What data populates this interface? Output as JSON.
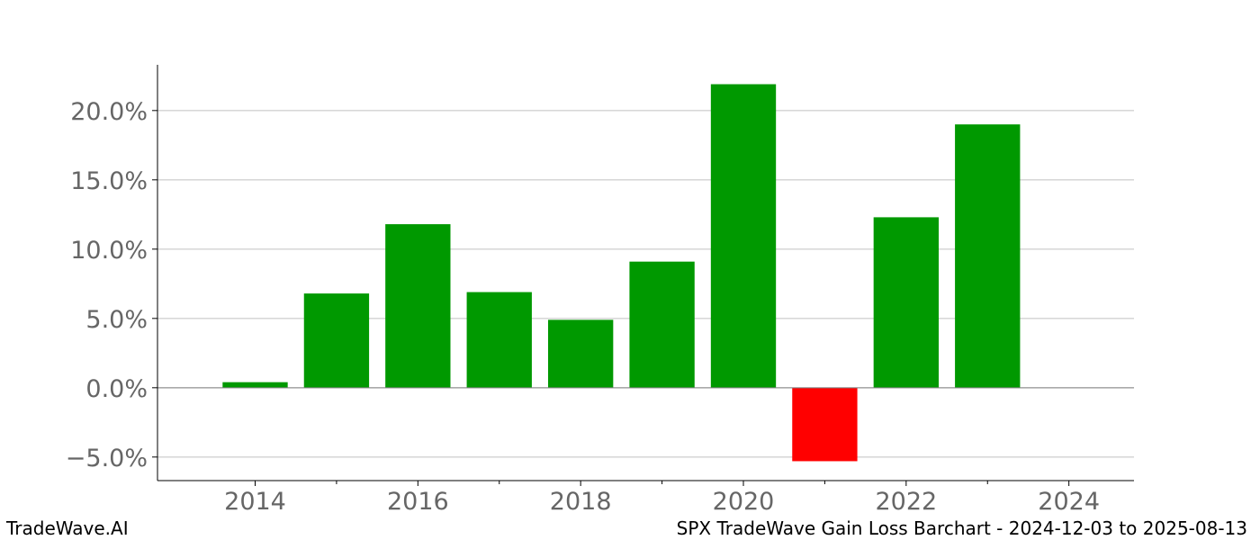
{
  "chart_data": {
    "type": "bar",
    "title": "SPX TradeWave Gain Loss Barchart - 2024-12-03 to 2025-08-13",
    "xlabel": "",
    "ylabel": "",
    "x": [
      2014,
      2015,
      2016,
      2017,
      2018,
      2019,
      2020,
      2021,
      2022,
      2023
    ],
    "values": [
      0.4,
      6.8,
      11.8,
      6.9,
      4.9,
      9.1,
      21.9,
      -5.3,
      12.3,
      19.0
    ],
    "xlim": [
      2012.8,
      2024.8
    ],
    "ylim": [
      -6.7,
      23.3
    ],
    "xticks": [
      2014,
      2016,
      2018,
      2020,
      2022,
      2024
    ],
    "xticks_minor": [
      2015,
      2017,
      2019,
      2021,
      2023
    ],
    "xtick_labels": [
      "2014",
      "2016",
      "2018",
      "2020",
      "2022",
      "2024"
    ],
    "yticks": [
      -5,
      0,
      5,
      10,
      15,
      20
    ],
    "ytick_labels": [
      "−5.0%",
      "0.0%",
      "5.0%",
      "10.0%",
      "15.0%",
      "20.0%"
    ],
    "grid": "horizontal",
    "colors": {
      "gain": "#009900",
      "loss": "#ff0000",
      "grid": "#c0c0c0",
      "zero_line": "#808080",
      "tick_label": "#666666"
    }
  },
  "footer": {
    "brand": "TradeWave.AI",
    "caption": "SPX TradeWave Gain Loss Barchart - 2024-12-03 to 2025-08-13"
  }
}
